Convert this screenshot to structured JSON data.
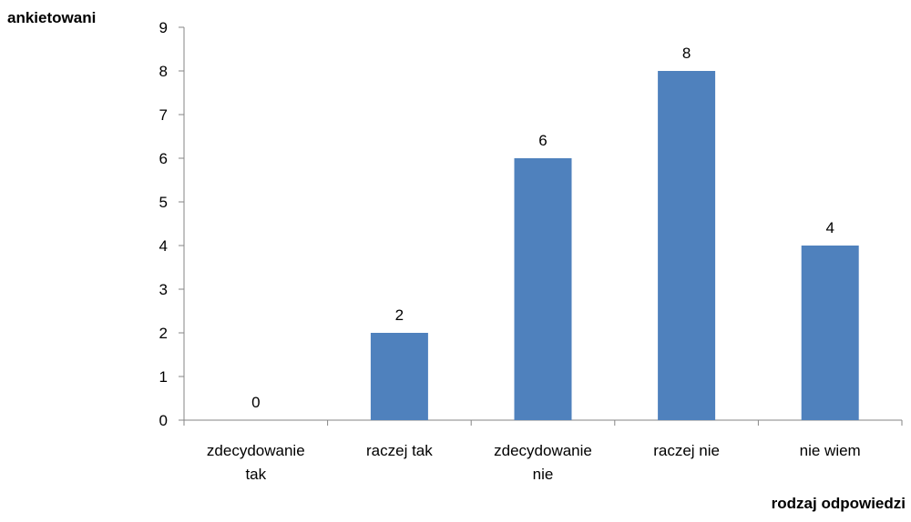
{
  "chart_data": {
    "type": "bar",
    "ylabel": "ankietowani",
    "xlabel": "rodzaj odpowiedzi",
    "categories": [
      [
        "zdecydowanie",
        "tak"
      ],
      [
        "raczej tak"
      ],
      [
        "zdecydowanie",
        "nie"
      ],
      [
        "raczej nie"
      ],
      [
        "nie wiem"
      ]
    ],
    "values": [
      0,
      2,
      6,
      8,
      4
    ],
    "data_labels": [
      "0",
      "2",
      "6",
      "8",
      "4"
    ],
    "yticks": [
      "0",
      "1",
      "2",
      "3",
      "4",
      "5",
      "6",
      "7",
      "8",
      "9"
    ],
    "ylim": [
      0,
      9
    ],
    "grid": false,
    "legend": "none",
    "bar_color": "#4F81BD",
    "axis_color": "#868686"
  }
}
